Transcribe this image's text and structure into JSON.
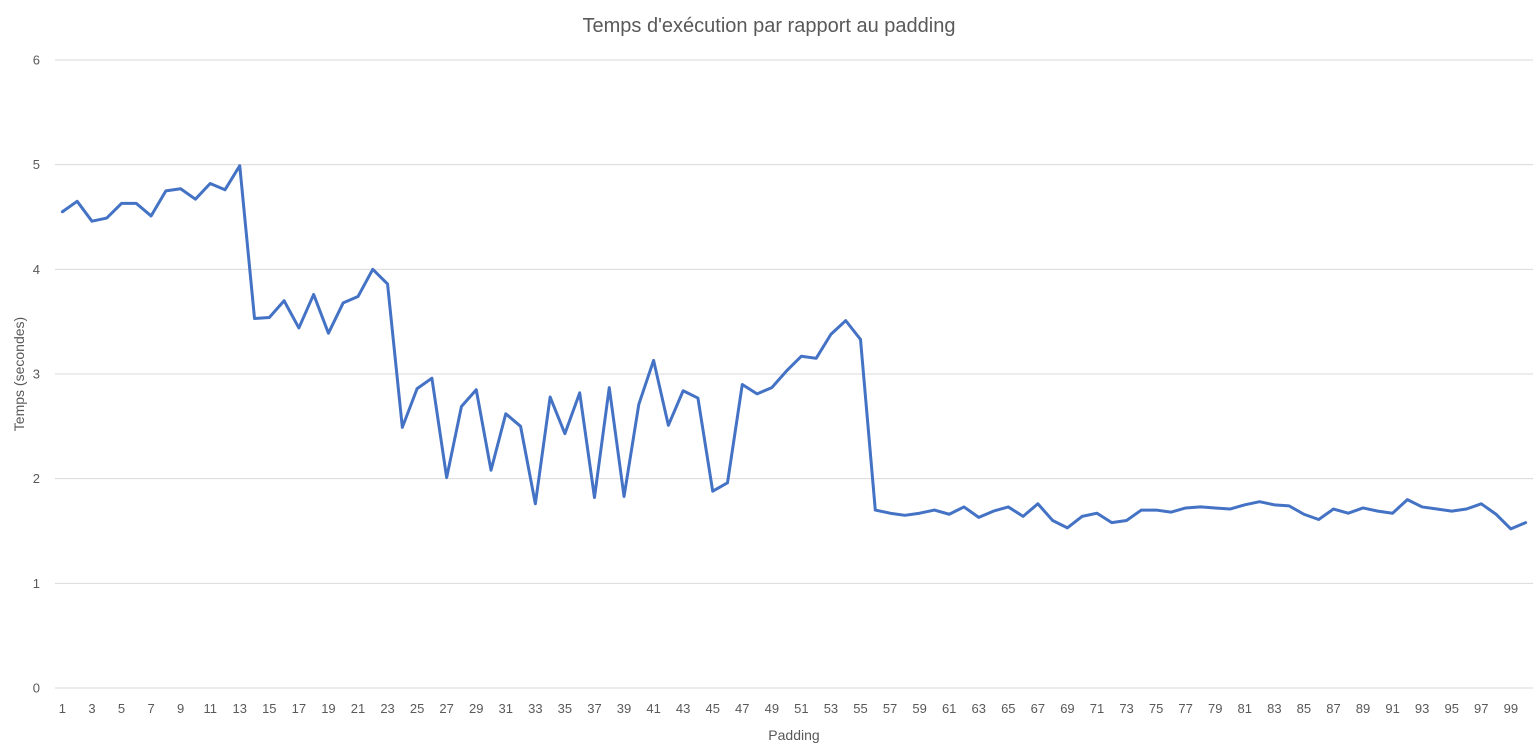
{
  "chart_data": {
    "type": "line",
    "title": "Temps d'exécution par rapport au padding",
    "xlabel": "Padding",
    "ylabel": "Temps (secondes)",
    "ylim": [
      0,
      6
    ],
    "yticks": [
      "0",
      "1",
      "2",
      "3",
      "4",
      "5",
      "6"
    ],
    "grid": true,
    "x": [
      1,
      2,
      3,
      4,
      5,
      6,
      7,
      8,
      9,
      10,
      11,
      12,
      13,
      14,
      15,
      16,
      17,
      18,
      19,
      20,
      21,
      22,
      23,
      24,
      25,
      26,
      27,
      28,
      29,
      30,
      31,
      32,
      33,
      34,
      35,
      36,
      37,
      38,
      39,
      40,
      41,
      42,
      43,
      44,
      45,
      46,
      47,
      48,
      49,
      50,
      51,
      52,
      53,
      54,
      55,
      56,
      57,
      58,
      59,
      60,
      61,
      62,
      63,
      64,
      65,
      66,
      67,
      68,
      69,
      70,
      71,
      72,
      73,
      74,
      75,
      76,
      77,
      78,
      79,
      80,
      81,
      82,
      83,
      84,
      85,
      86,
      87,
      88,
      89,
      90,
      91,
      92,
      93,
      94,
      95,
      96,
      97,
      98,
      99,
      100
    ],
    "xtick_labels": [
      "1",
      "3",
      "5",
      "7",
      "9",
      "11",
      "13",
      "15",
      "17",
      "19",
      "21",
      "23",
      "25",
      "27",
      "29",
      "31",
      "33",
      "35",
      "37",
      "39",
      "41",
      "43",
      "45",
      "47",
      "49",
      "51",
      "53",
      "55",
      "57",
      "59",
      "61",
      "63",
      "65",
      "67",
      "69",
      "71",
      "73",
      "75",
      "77",
      "79",
      "81",
      "83",
      "85",
      "87",
      "89",
      "91",
      "93",
      "95",
      "97",
      "99"
    ],
    "series": [
      {
        "color": "#4472c4",
        "values": [
          4.55,
          4.65,
          4.46,
          4.49,
          4.63,
          4.63,
          4.51,
          4.75,
          4.77,
          4.67,
          4.82,
          4.76,
          4.99,
          3.53,
          3.54,
          3.7,
          3.44,
          3.76,
          3.39,
          3.68,
          3.74,
          4.0,
          3.86,
          2.49,
          2.86,
          2.96,
          2.01,
          2.69,
          2.85,
          2.08,
          2.62,
          2.5,
          1.76,
          2.78,
          2.43,
          2.82,
          1.82,
          2.87,
          1.83,
          2.71,
          3.13,
          2.51,
          2.84,
          2.77,
          1.88,
          1.96,
          2.9,
          2.81,
          2.87,
          3.03,
          3.17,
          3.15,
          3.38,
          3.51,
          3.33,
          1.7,
          1.67,
          1.65,
          1.67,
          1.7,
          1.66,
          1.73,
          1.63,
          1.69,
          1.73,
          1.64,
          1.76,
          1.6,
          1.53,
          1.64,
          1.67,
          1.58,
          1.6,
          1.7,
          1.7,
          1.68,
          1.72,
          1.73,
          1.72,
          1.71,
          1.75,
          1.78,
          1.75,
          1.74,
          1.66,
          1.61,
          1.71,
          1.67,
          1.72,
          1.69,
          1.67,
          1.8,
          1.73,
          1.71,
          1.69,
          1.71,
          1.76,
          1.66,
          1.52,
          1.58
        ]
      }
    ]
  }
}
